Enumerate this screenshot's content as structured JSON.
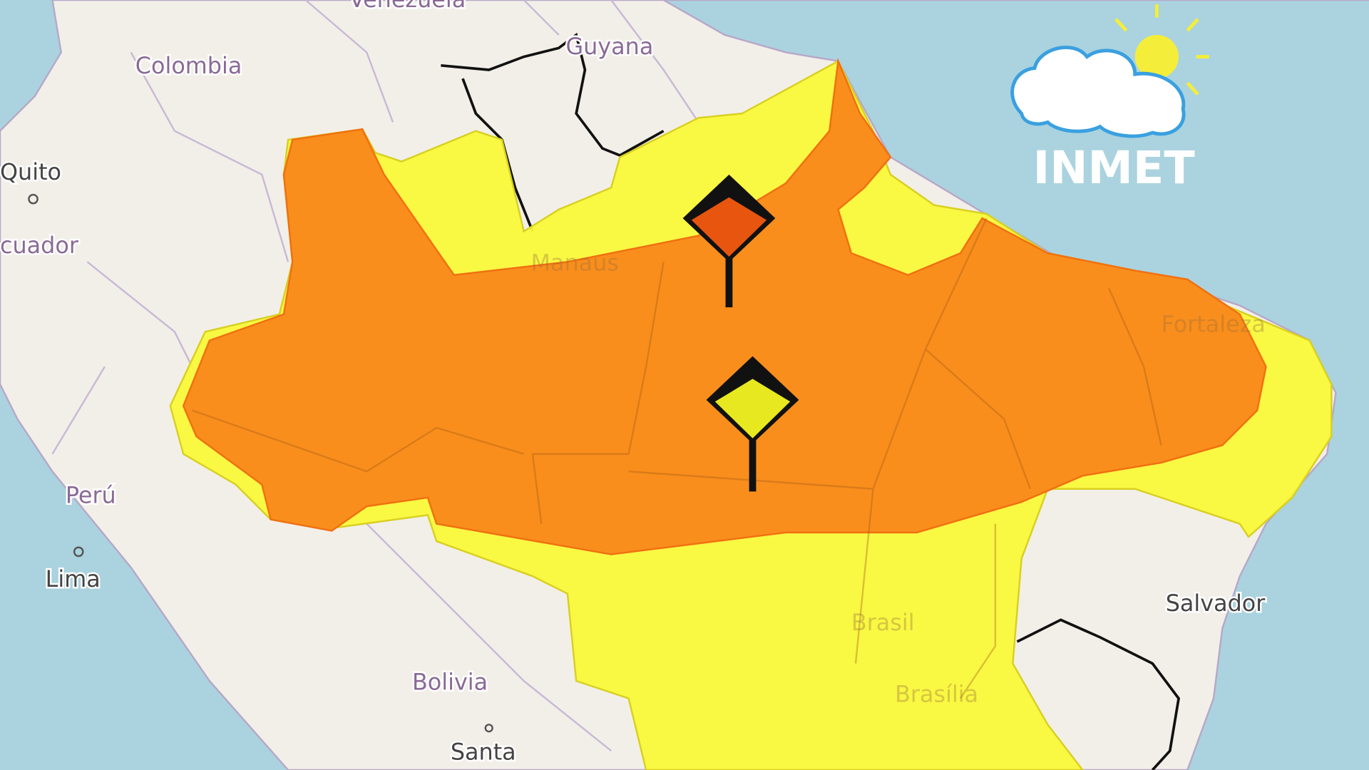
{
  "map": {
    "labels": {
      "venezuela": "Venezuela",
      "guyana": "Guyana",
      "colombia": "Colombia",
      "quito": "Quito",
      "ecuador": "cuador",
      "peru": "Perú",
      "lima": "Lima",
      "bolivia": "Bolivia",
      "santa": "Santa",
      "manaus": "Manaus",
      "fortaleza": "Fortaleza",
      "salvador": "Salvador",
      "brasil": "Brasil",
      "brasilia": "Brasília"
    },
    "alert_levels": [
      {
        "level": "orange",
        "color": "#f98e1c"
      },
      {
        "level": "yellow",
        "color": "#f9f83a"
      }
    ],
    "markers": [
      {
        "icon": "orange-alert-sign-icon",
        "color": "#e8550f"
      },
      {
        "icon": "yellow-alert-sign-icon",
        "color": "#e8e820"
      }
    ]
  },
  "logo": {
    "text": "INMET",
    "icon": "cloud-sun-icon"
  }
}
